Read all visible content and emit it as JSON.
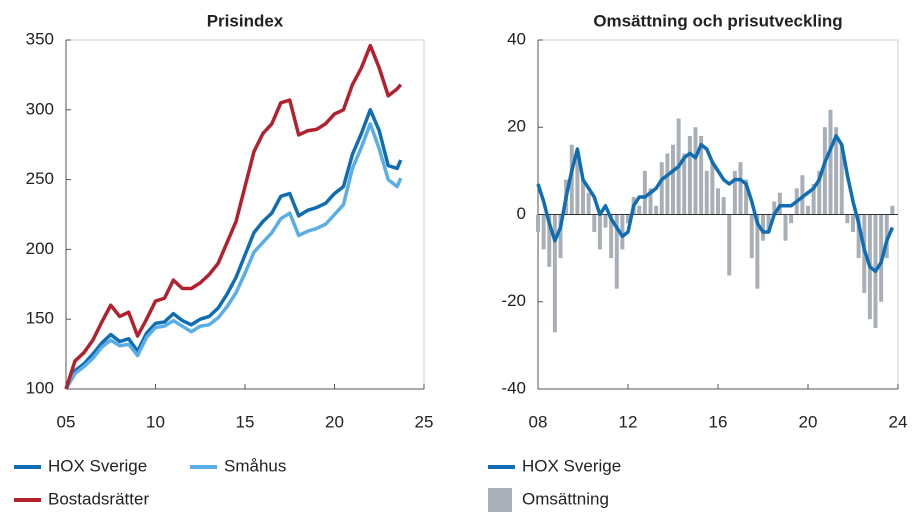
{
  "chart_data": [
    {
      "type": "line",
      "title": "Prisindex",
      "xlim": [
        5,
        25
      ],
      "xticks": [
        {
          "value": 5,
          "label": "05"
        },
        10,
        15,
        20,
        25
      ],
      "ylim": [
        100,
        350
      ],
      "yticks": [
        100,
        150,
        200,
        250,
        300,
        350
      ],
      "x": [
        5.0,
        5.5,
        6.0,
        6.5,
        7.0,
        7.5,
        8.0,
        8.5,
        9.0,
        9.5,
        10.0,
        10.5,
        11.0,
        11.5,
        12.0,
        12.5,
        13.0,
        13.5,
        14.0,
        14.5,
        15.0,
        15.5,
        16.0,
        16.5,
        17.0,
        17.5,
        18.0,
        18.5,
        19.0,
        19.5,
        20.0,
        20.5,
        21.0,
        21.5,
        22.0,
        22.5,
        23.0,
        23.5,
        23.7
      ],
      "series": [
        {
          "name": "HOX Sverige",
          "color": "#0f6db3",
          "values": [
            100,
            113,
            118,
            125,
            133,
            139,
            134,
            136,
            127,
            140,
            147,
            148,
            154,
            149,
            146,
            150,
            152,
            158,
            168,
            180,
            196,
            212,
            220,
            226,
            238,
            240,
            224,
            228,
            230,
            233,
            240,
            245,
            268,
            283,
            300,
            285,
            260,
            258,
            264
          ]
        },
        {
          "name": "Småhus",
          "color": "#5aaee8",
          "values": [
            100,
            111,
            116,
            122,
            130,
            135,
            131,
            132,
            124,
            137,
            144,
            145,
            149,
            145,
            141,
            145,
            146,
            151,
            159,
            169,
            183,
            198,
            205,
            212,
            222,
            226,
            210,
            213,
            215,
            218,
            225,
            232,
            258,
            273,
            290,
            272,
            250,
            245,
            251
          ]
        },
        {
          "name": "Bostadsrätter",
          "color": "#b3202e",
          "values": [
            100,
            120,
            126,
            135,
            148,
            160,
            152,
            155,
            138,
            150,
            163,
            165,
            178,
            172,
            172,
            176,
            182,
            190,
            205,
            220,
            245,
            270,
            283,
            290,
            305,
            307,
            282,
            285,
            286,
            290,
            297,
            300,
            318,
            330,
            346,
            330,
            310,
            315,
            318
          ]
        }
      ]
    },
    {
      "type": "combo",
      "title": "Omsättning och prisutveckling",
      "xlim": [
        8,
        24
      ],
      "xticks": [
        {
          "value": 8,
          "label": "08"
        },
        12,
        16,
        20,
        24
      ],
      "ylim": [
        -40,
        40
      ],
      "yticks": [
        -40,
        -20,
        0,
        20,
        40
      ],
      "x": [
        8.0,
        8.25,
        8.5,
        8.75,
        9.0,
        9.25,
        9.5,
        9.75,
        10.0,
        10.25,
        10.5,
        10.75,
        11.0,
        11.25,
        11.5,
        11.75,
        12.0,
        12.25,
        12.5,
        12.75,
        13.0,
        13.25,
        13.5,
        13.75,
        14.0,
        14.25,
        14.5,
        14.75,
        15.0,
        15.25,
        15.5,
        15.75,
        16.0,
        16.25,
        16.5,
        16.75,
        17.0,
        17.25,
        17.5,
        17.75,
        18.0,
        18.25,
        18.5,
        18.75,
        19.0,
        19.25,
        19.5,
        19.75,
        20.0,
        20.25,
        20.5,
        20.75,
        21.0,
        21.25,
        21.5,
        21.75,
        22.0,
        22.25,
        22.5,
        22.75,
        23.0,
        23.25,
        23.5,
        23.75
      ],
      "series": [
        {
          "name": "HOX Sverige",
          "type": "line",
          "color": "#0f6db3",
          "values": [
            7,
            3,
            -2,
            -6,
            -3,
            4,
            10,
            15,
            8,
            6,
            4,
            0,
            2,
            -1,
            -3,
            -5,
            -4,
            2,
            4,
            4,
            5,
            6,
            8,
            9,
            10,
            11,
            13,
            14,
            13,
            16,
            15,
            12,
            10,
            8,
            7,
            8,
            8,
            7,
            3,
            -2,
            -4,
            -4,
            0,
            2,
            2,
            2,
            3,
            4,
            5,
            6,
            8,
            12,
            15,
            18,
            16,
            9,
            3,
            -2,
            -8,
            -12,
            -13,
            -11,
            -6,
            -3
          ]
        },
        {
          "name": "Omsättning",
          "type": "bar",
          "color": "#a9afb7",
          "values": [
            -4,
            -8,
            -12,
            -27,
            -10,
            8,
            16,
            14,
            8,
            5,
            -4,
            -8,
            -3,
            -10,
            -17,
            -8,
            -2,
            4,
            2,
            10,
            6,
            2,
            12,
            14,
            16,
            22,
            14,
            18,
            20,
            18,
            10,
            12,
            6,
            4,
            -14,
            10,
            12,
            8,
            -10,
            -17,
            -6,
            -4,
            3,
            5,
            -6,
            -2,
            6,
            9,
            2,
            7,
            10,
            20,
            24,
            20,
            16,
            -2,
            -4,
            -10,
            -18,
            -24,
            -26,
            -20,
            -10,
            2
          ]
        }
      ]
    }
  ]
}
